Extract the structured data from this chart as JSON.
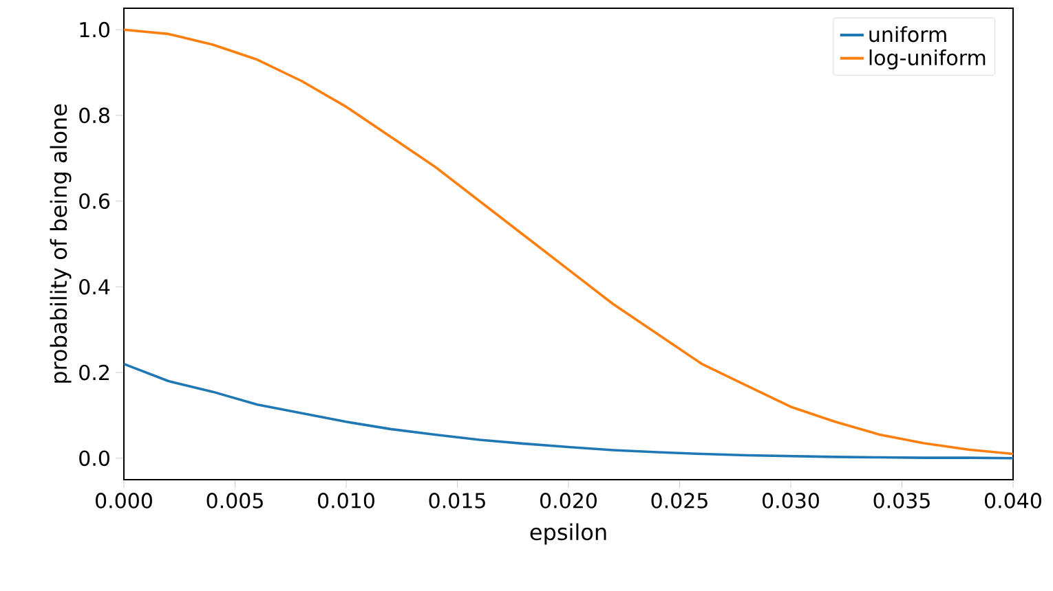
{
  "chart_data": {
    "type": "line",
    "xlabel": "epsilon",
    "ylabel": "probability of being alone",
    "x": [
      0,
      0.002,
      0.004,
      0.006,
      0.008,
      0.01,
      0.012,
      0.014,
      0.016,
      0.018,
      0.02,
      0.022,
      0.024,
      0.026,
      0.028,
      0.03,
      0.032,
      0.034,
      0.036,
      0.038,
      0.04
    ],
    "series": [
      {
        "name": "uniform",
        "color": "#1f77b4",
        "values": [
          0.22,
          0.18,
          0.155,
          0.125,
          0.105,
          0.085,
          0.068,
          0.055,
          0.043,
          0.034,
          0.026,
          0.019,
          0.014,
          0.01,
          0.007,
          0.005,
          0.003,
          0.002,
          0.001,
          0.001,
          0.0
        ]
      },
      {
        "name": "log-uniform",
        "color": "#ff7f0e",
        "values": [
          1.0,
          0.99,
          0.965,
          0.93,
          0.88,
          0.82,
          0.75,
          0.68,
          0.6,
          0.52,
          0.44,
          0.36,
          0.29,
          0.22,
          0.17,
          0.12,
          0.085,
          0.055,
          0.035,
          0.02,
          0.01
        ]
      }
    ],
    "xlim": [
      0,
      0.04
    ],
    "ylim": [
      -0.05,
      1.05
    ],
    "xticks": [
      {
        "value": 0,
        "label": "0.000"
      },
      {
        "value": 0.005,
        "label": "0.005"
      },
      {
        "value": 0.01,
        "label": "0.010"
      },
      {
        "value": 0.015,
        "label": "0.015"
      },
      {
        "value": 0.02,
        "label": "0.020"
      },
      {
        "value": 0.025,
        "label": "0.025"
      },
      {
        "value": 0.03,
        "label": "0.030"
      },
      {
        "value": 0.035,
        "label": "0.035"
      },
      {
        "value": 0.04,
        "label": "0.040"
      }
    ],
    "yticks": [
      {
        "value": 0,
        "label": "0.0"
      },
      {
        "value": 0.2,
        "label": "0.2"
      },
      {
        "value": 0.4,
        "label": "0.4"
      },
      {
        "value": 0.6,
        "label": "0.6"
      },
      {
        "value": 0.8,
        "label": "0.8"
      },
      {
        "value": 1.0,
        "label": "1.0"
      }
    ],
    "legend": "top right",
    "grid": false,
    "marker": "none",
    "line_style": "solid"
  }
}
